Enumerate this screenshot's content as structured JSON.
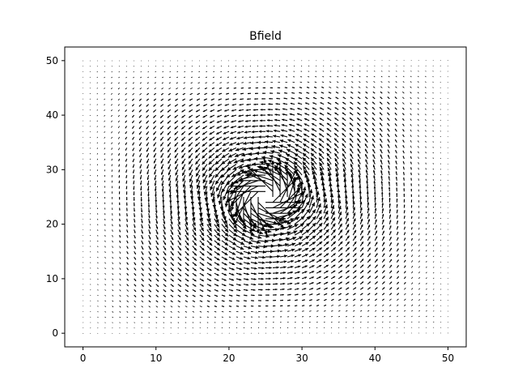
{
  "chart_data": {
    "type": "quiver",
    "title": "Bfield",
    "xlabel": "",
    "ylabel": "",
    "xlim": [
      -2.5,
      52.5
    ],
    "ylim": [
      -2.5,
      52.5
    ],
    "xticks": [
      0,
      10,
      20,
      30,
      40,
      50
    ],
    "yticks": [
      0,
      10,
      20,
      30,
      40,
      50
    ],
    "grid": false,
    "field": {
      "description": "circulating magnetic field around a vortex center",
      "center": [
        25,
        25
      ],
      "grid_x": {
        "start": 0,
        "stop": 50,
        "step": 1
      },
      "grid_y": {
        "start": 0,
        "stop": 50,
        "step": 1
      },
      "rotation": "counterclockwise"
    },
    "arrow_color": "#000000"
  }
}
